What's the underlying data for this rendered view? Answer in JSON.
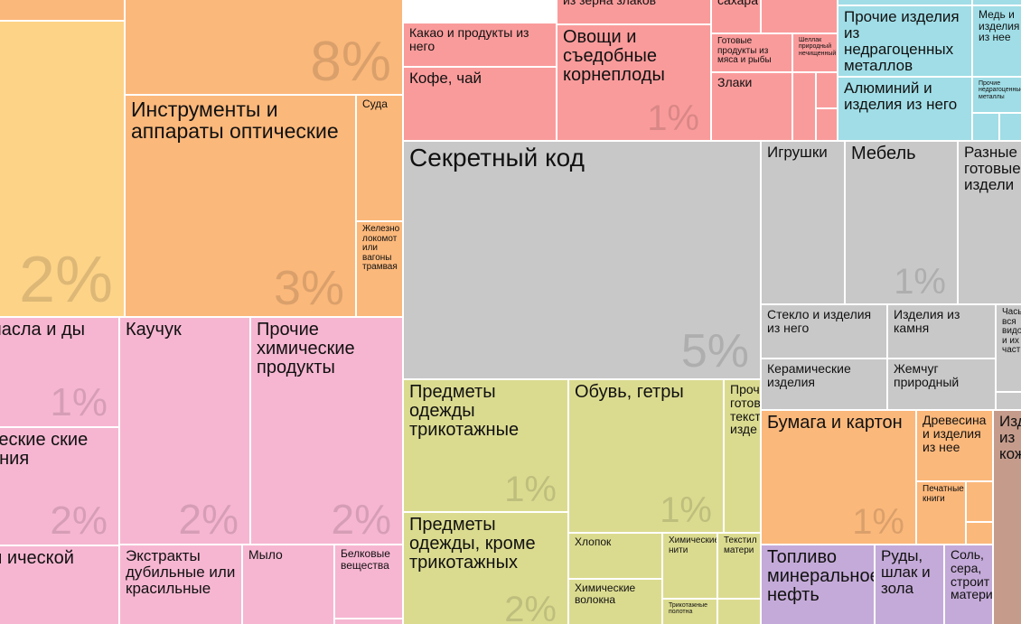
{
  "colors": {
    "yellow": "#fdd388",
    "orange": "#fbb87b",
    "pink": "#f6b6d1",
    "red": "#fa9b9b",
    "grey": "#c8c8c8",
    "olive": "#dbdb90",
    "cyan": "#a0dde6",
    "purple": "#c4aad8",
    "brown": "#c59c8c"
  },
  "chart_data": {
    "type": "treemap",
    "title": "",
    "tiles": [
      {
        "label": "",
        "pct": "2%",
        "group": "yellow"
      },
      {
        "label": "",
        "pct": "8%",
        "group": "orange"
      },
      {
        "label": "Инструменты и аппараты оптические",
        "pct": "3%",
        "group": "orange"
      },
      {
        "label": "Суда",
        "pct": "",
        "group": "orange"
      },
      {
        "label": "Железно локомот или вагоны трамвая",
        "pct": "",
        "group": "orange"
      },
      {
        "label": "масла и ды",
        "pct": "1%",
        "group": "pink"
      },
      {
        "label": "ческие ские ения",
        "pct": "2%",
        "group": "pink"
      },
      {
        "label": "ы ической",
        "pct": "",
        "group": "pink"
      },
      {
        "label": "Каучук",
        "pct": "2%",
        "group": "pink"
      },
      {
        "label": "Прочие химические продукты",
        "pct": "2%",
        "group": "pink"
      },
      {
        "label": "Экстракты дубильные или красильные",
        "pct": "",
        "group": "pink"
      },
      {
        "label": "Мыло",
        "pct": "",
        "group": "pink"
      },
      {
        "label": "Белковые вещества",
        "pct": "",
        "group": "pink"
      },
      {
        "label": "Какао и продукты из него",
        "pct": "",
        "group": "red"
      },
      {
        "label": "Кофе, чай",
        "pct": "",
        "group": "red"
      },
      {
        "label": "из зерна злаков",
        "pct": "",
        "group": "red"
      },
      {
        "label": "Овощи и съедобные корнеплоды",
        "pct": "1%",
        "group": "red"
      },
      {
        "label": "сахара",
        "pct": "",
        "group": "red"
      },
      {
        "label": "Готовые продукты из мяса и рыбы",
        "pct": "",
        "group": "red"
      },
      {
        "label": "Злаки",
        "pct": "",
        "group": "red"
      },
      {
        "label": "Шеллак природный нечищенный",
        "pct": "",
        "group": "red"
      },
      {
        "label": "Прочие изделия из недрагоценных металлов",
        "pct": "",
        "group": "cyan"
      },
      {
        "label": "Медь и изделия из нее",
        "pct": "",
        "group": "cyan"
      },
      {
        "label": "Алюминий и изделия из него",
        "pct": "",
        "group": "cyan"
      },
      {
        "label": "Прочие недрагоценные металлы",
        "pct": "",
        "group": "cyan"
      },
      {
        "label": "Секретный код",
        "pct": "5%",
        "group": "grey"
      },
      {
        "label": "Игрушки",
        "pct": "",
        "group": "grey"
      },
      {
        "label": "Мебель",
        "pct": "1%",
        "group": "grey"
      },
      {
        "label": "Разные готовые издели",
        "pct": "",
        "group": "grey"
      },
      {
        "label": "Стекло и изделия из него",
        "pct": "",
        "group": "grey"
      },
      {
        "label": "Изделия из камня",
        "pct": "",
        "group": "grey"
      },
      {
        "label": "Часы вся видо и их част",
        "pct": "",
        "group": "grey"
      },
      {
        "label": "Керамические изделия",
        "pct": "",
        "group": "grey"
      },
      {
        "label": "Жемчуг природный",
        "pct": "",
        "group": "grey"
      },
      {
        "label": "Предметы одежды трикотажные",
        "pct": "1%",
        "group": "olive"
      },
      {
        "label": "Обувь, гетры",
        "pct": "1%",
        "group": "olive"
      },
      {
        "label": "Проч готов текст изде",
        "pct": "",
        "group": "olive"
      },
      {
        "label": "Предметы одежды, кроме трикотажных",
        "pct": "2%",
        "group": "olive"
      },
      {
        "label": "Хлопок",
        "pct": "",
        "group": "olive"
      },
      {
        "label": "Химические нити",
        "pct": "",
        "group": "olive"
      },
      {
        "label": "Текстил матери",
        "pct": "",
        "group": "olive"
      },
      {
        "label": "Химические волокна",
        "pct": "",
        "group": "olive"
      },
      {
        "label": "Трикотажные полотна",
        "pct": "",
        "group": "olive"
      },
      {
        "label": "Бумага и картон",
        "pct": "1%",
        "group": "orange"
      },
      {
        "label": "Древесина и изделия из нее",
        "pct": "",
        "group": "orange"
      },
      {
        "label": "Печатные книги",
        "pct": "",
        "group": "orange"
      },
      {
        "label": "Изд из кож",
        "pct": "",
        "group": "brown"
      },
      {
        "label": "Топливо минеральное нефть",
        "pct": "",
        "group": "purple"
      },
      {
        "label": "Руды, шлак и зола",
        "pct": "",
        "group": "purple"
      },
      {
        "label": "Соль, сера, строит матери",
        "pct": "",
        "group": "purple"
      }
    ]
  }
}
